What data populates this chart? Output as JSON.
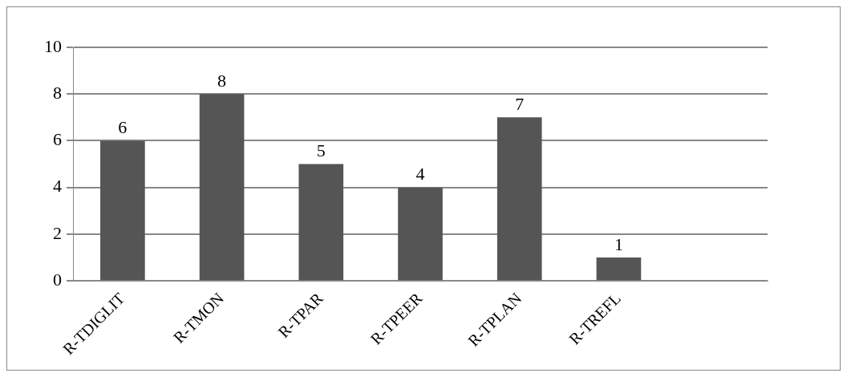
{
  "chart_data": {
    "type": "bar",
    "categories": [
      "R-TDIGLIT",
      "R-TMON",
      "R-TPAR",
      "R-TPEER",
      "R-TPLAN",
      "R-TREFL",
      null
    ],
    "values": [
      6,
      8,
      5,
      4,
      7,
      1,
      null
    ],
    "color": "#555555",
    "ylim": [
      0,
      10
    ],
    "yticks": [
      0,
      2,
      4,
      6,
      8,
      10
    ],
    "grid": "y",
    "data_labels": true
  }
}
